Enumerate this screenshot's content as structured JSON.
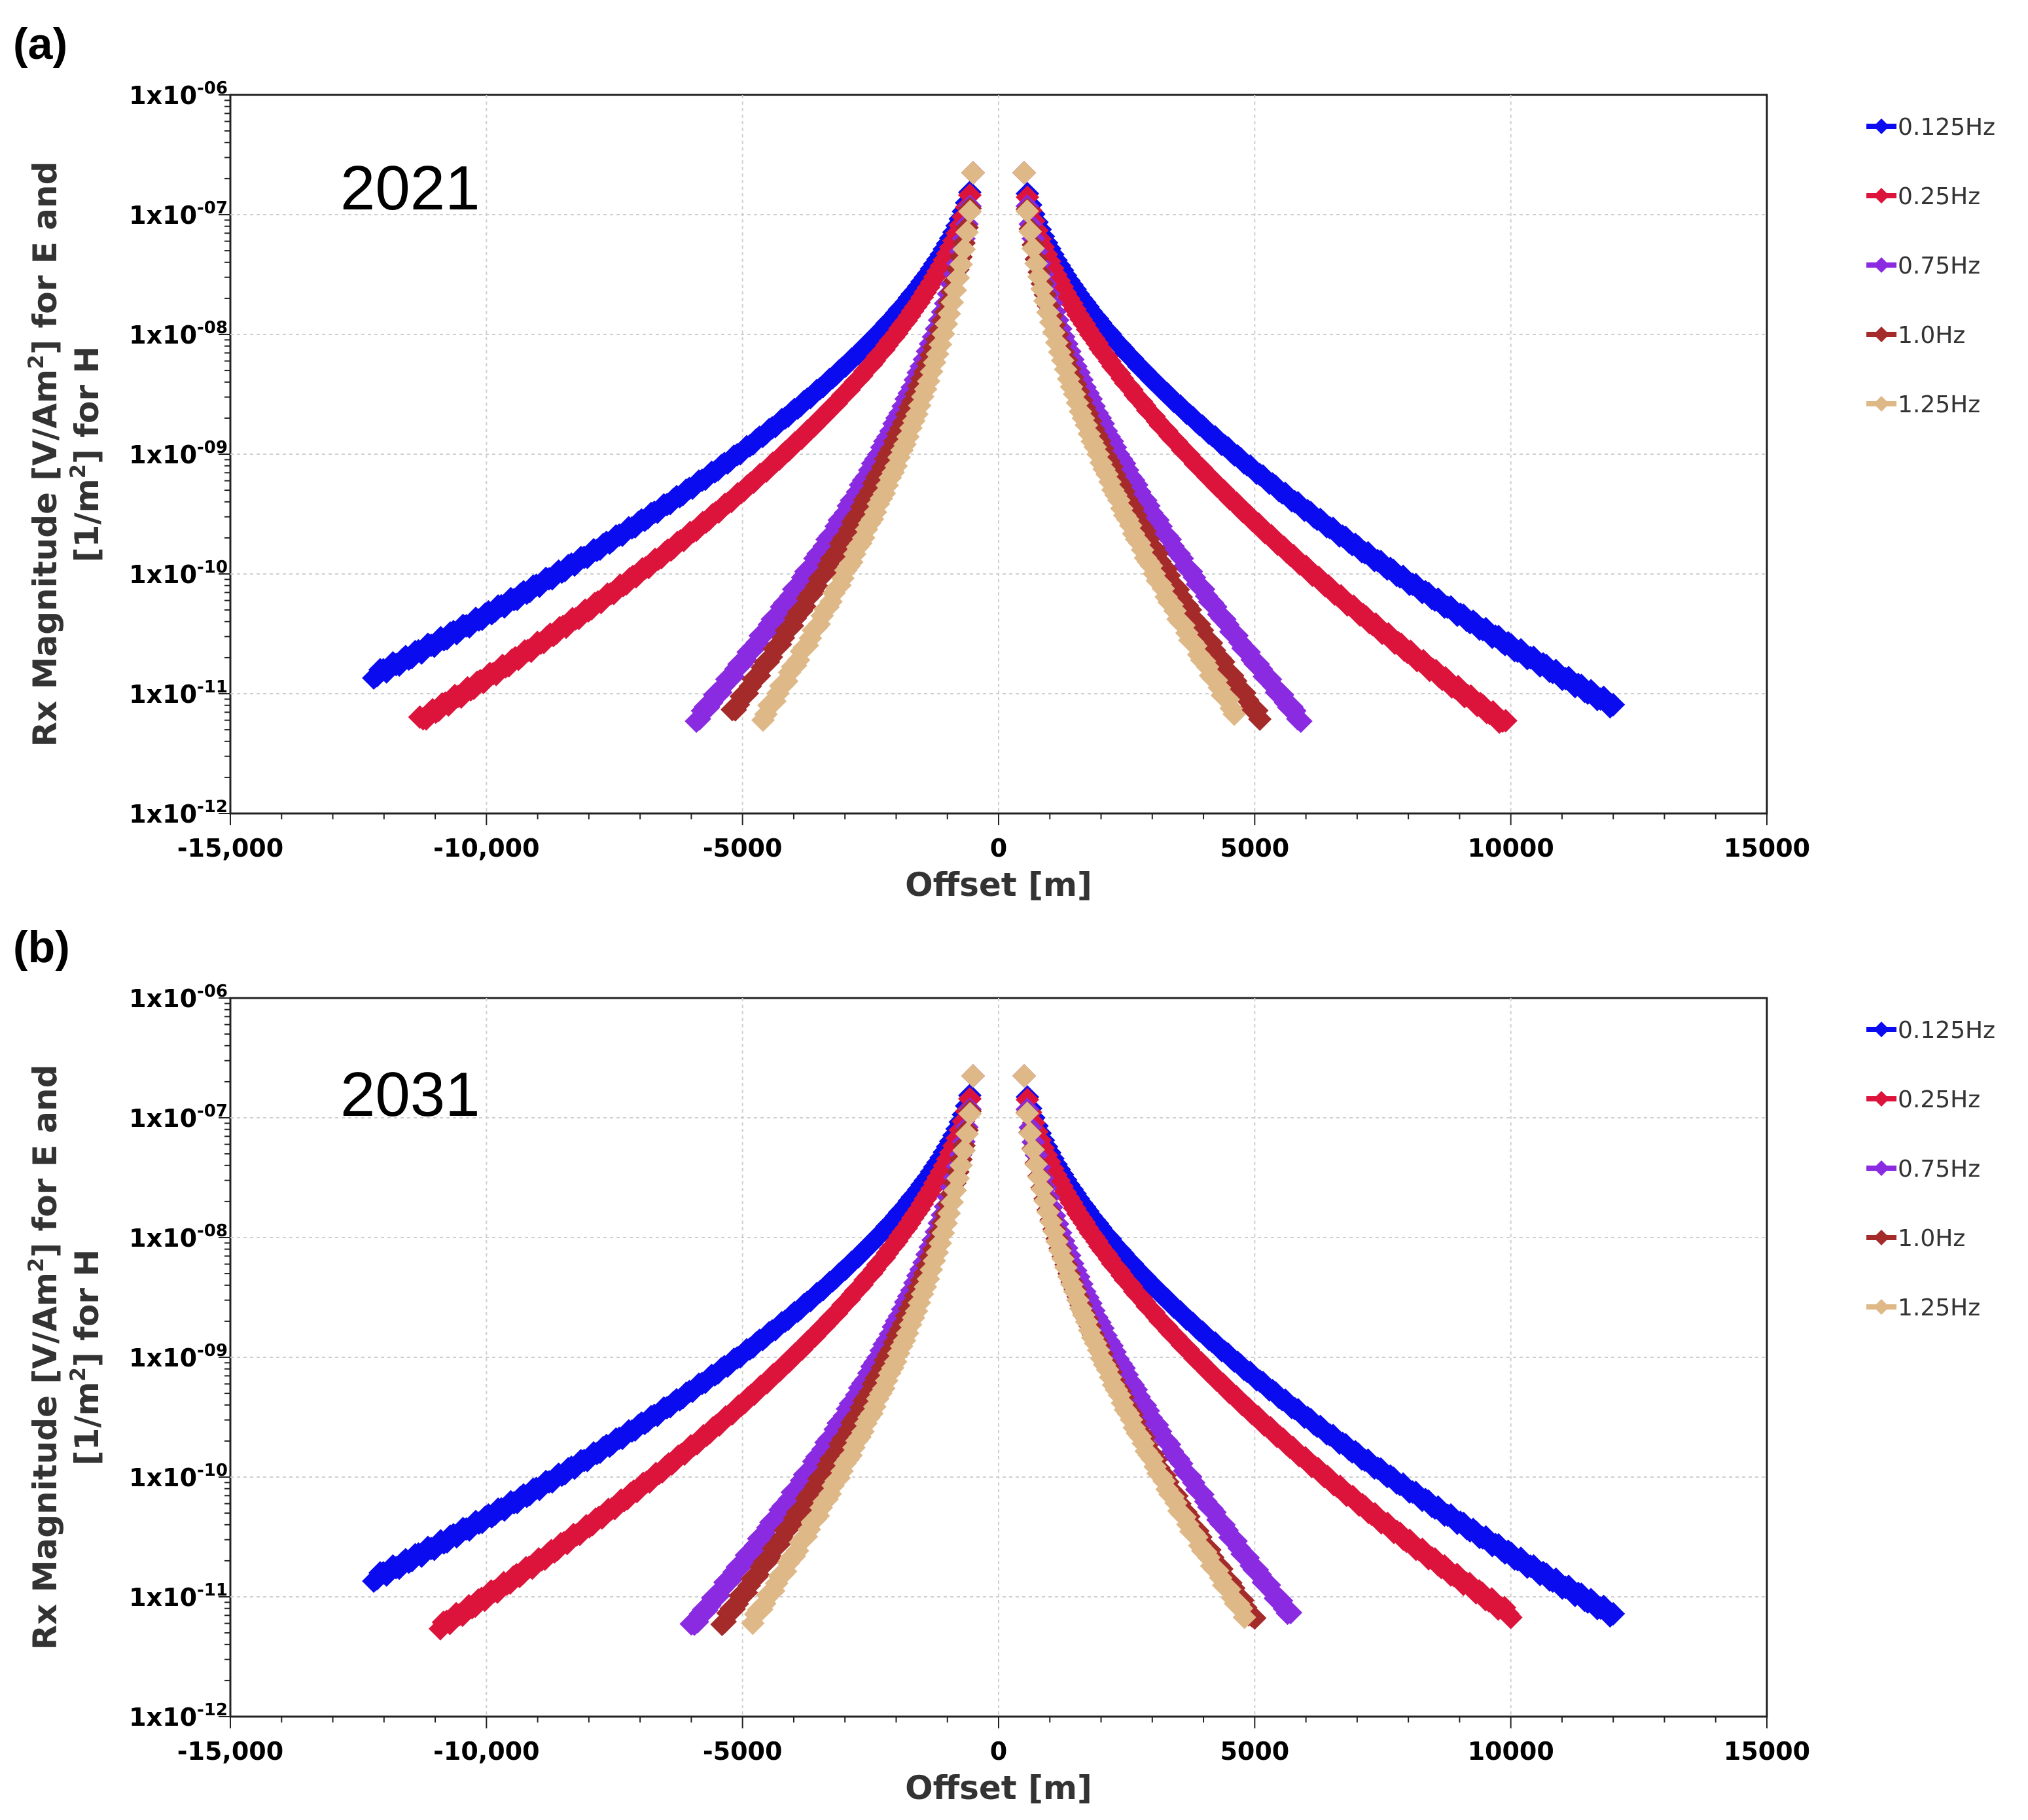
{
  "chart_data": [
    {
      "type": "scatter",
      "panel": "(a)",
      "annotation": "2021",
      "xlabel": "Offset [m]",
      "ylabel": "Rx Magnitude [V/Am²] for E and [1/m²] for H",
      "ylabel_line1": "Rx Magnitude [V/Am",
      "ylabel_line1_sup": "2",
      "ylabel_line1_end": "] for E and",
      "ylabel_line2": "[1/m",
      "ylabel_line2_sup": "2",
      "ylabel_line2_end": "] for H",
      "xlim": [
        -15000,
        15000
      ],
      "ylim_exp": [
        -12,
        -6
      ],
      "yscale": "log",
      "grid": true,
      "x_ticks": [
        -15000,
        -10000,
        -5000,
        0,
        5000,
        10000,
        15000
      ],
      "x_tick_labels": [
        "-15,000",
        "-10,000",
        "-5000",
        "0",
        "5000",
        "10000",
        "15000"
      ],
      "y_ticks_exp": [
        -6,
        -7,
        -8,
        -9,
        -10,
        -11,
        -12
      ],
      "y_tick_base": "1x10",
      "y_tick_sups": [
        "-06",
        "-07",
        "-08",
        "-09",
        "-10",
        "-11",
        "-12"
      ],
      "legend_position": "right",
      "series": [
        {
          "name": "0.125Hz",
          "color": "#0b0bf0",
          "max_offset": 12000,
          "end_exp": -11.1,
          "left_end_exp": -10.85,
          "left_max": 12200
        },
        {
          "name": "0.25Hz",
          "color": "#dc143c",
          "max_offset": 9900,
          "end_exp": -11.25,
          "left_end_exp": -11.22,
          "left_max": 11300
        },
        {
          "name": "0.75Hz",
          "color": "#8a2be2",
          "max_offset": 5900,
          "end_exp": -11.22,
          "left_end_exp": -11.22,
          "left_max": 5900
        },
        {
          "name": "1.0Hz",
          "color": "#a52a2a",
          "max_offset": 5100,
          "end_exp": -11.2,
          "left_end_exp": -11.15,
          "left_max": 5200
        },
        {
          "name": "1.25Hz",
          "color": "#deb887",
          "max_offset": 4600,
          "end_exp": -11.15,
          "left_end_exp": -11.2,
          "left_max": 4600
        }
      ],
      "peak_exp": -6.65,
      "min_offset": 500
    },
    {
      "type": "scatter",
      "panel": "(b)",
      "annotation": "2031",
      "xlabel": "Offset [m]",
      "ylabel": "Rx Magnitude [V/Am²] for E and [1/m²] for H",
      "ylabel_line1": "Rx Magnitude [V/Am",
      "ylabel_line1_sup": "2",
      "ylabel_line1_end": "] for E and",
      "ylabel_line2": "[1/m",
      "ylabel_line2_sup": "2",
      "ylabel_line2_end": "] for H",
      "xlim": [
        -15000,
        15000
      ],
      "ylim_exp": [
        -12,
        -6
      ],
      "yscale": "log",
      "grid": true,
      "x_ticks": [
        -15000,
        -10000,
        -5000,
        0,
        5000,
        10000,
        15000
      ],
      "x_tick_labels": [
        "-15,000",
        "-10,000",
        "-5000",
        "0",
        "5000",
        "10000",
        "15000"
      ],
      "y_ticks_exp": [
        -6,
        -7,
        -8,
        -9,
        -10,
        -11,
        -12
      ],
      "y_tick_base": "1x10",
      "y_tick_sups": [
        "-06",
        "-07",
        "-08",
        "-09",
        "-10",
        "-11",
        "-12"
      ],
      "legend_position": "right",
      "series": [
        {
          "name": "0.125Hz",
          "color": "#0b0bf0",
          "max_offset": 12000,
          "end_exp": -11.15,
          "left_end_exp": -10.85,
          "left_max": 12200
        },
        {
          "name": "0.25Hz",
          "color": "#dc143c",
          "max_offset": 10000,
          "end_exp": -11.15,
          "left_end_exp": -11.25,
          "left_max": 10900
        },
        {
          "name": "0.75Hz",
          "color": "#8a2be2",
          "max_offset": 5700,
          "end_exp": -11.15,
          "left_end_exp": -11.25,
          "left_max": 6000
        },
        {
          "name": "1.0Hz",
          "color": "#a52a2a",
          "max_offset": 5000,
          "end_exp": -11.2,
          "left_end_exp": -11.22,
          "left_max": 5400
        },
        {
          "name": "1.25Hz",
          "color": "#deb887",
          "max_offset": 4800,
          "end_exp": -11.15,
          "left_end_exp": -11.2,
          "left_max": 4800
        }
      ],
      "peak_exp": -6.65,
      "min_offset": 500
    }
  ]
}
